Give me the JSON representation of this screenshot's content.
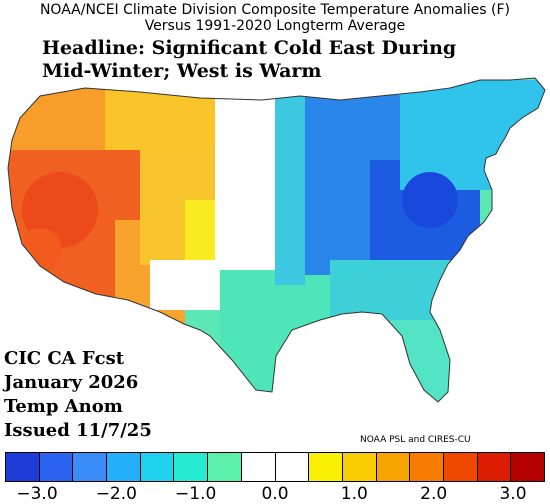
{
  "title_line1": "NOAA/NCEI Climate Division Composite Temperature Anomalies (F)",
  "title_line2": "Versus 1991-2020 Longterm Average",
  "headline": "Headline: Significant Cold East During Mid-Winter; West is Warm",
  "forecast_label": [
    "CIC CA Fcst",
    "January 2026",
    "Temp Anom",
    "Issued 11/7/25"
  ],
  "credit": "NOAA PSL and CIRES-CU",
  "colorbar": {
    "colors": [
      "#1e3cd8",
      "#2a64f0",
      "#3a8cf8",
      "#24b0f8",
      "#1ed2f0",
      "#26ecd4",
      "#5af0aa",
      "#ffffff",
      "#ffffff",
      "#f8f000",
      "#f8cc00",
      "#f8a400",
      "#f87c00",
      "#f04800",
      "#dc1c00",
      "#b40000"
    ],
    "ticks": [
      "−3.0",
      "−2.0",
      "−1.0",
      "0.0",
      "1.0",
      "2.0",
      "3.0"
    ]
  },
  "regions": [
    {
      "name": "Pacific Northwest",
      "anomaly": 1.5,
      "color": "#f89c2a"
    },
    {
      "name": "Great Basin / Southwest",
      "anomaly": 2.3,
      "color": "#f06020"
    },
    {
      "name": "Coastal California",
      "anomaly": 2.1,
      "color": "#f46a1c"
    },
    {
      "name": "Northern Rockies",
      "anomaly": 1.2,
      "color": "#f8c428"
    },
    {
      "name": "Southern Rockies",
      "anomaly": 1.0,
      "color": "#f8e020"
    },
    {
      "name": "Great Plains",
      "anomaly": 0.0,
      "color": "#ffffff"
    },
    {
      "name": "Southern Plains",
      "anomaly": -1.0,
      "color": "#4ee6b8"
    },
    {
      "name": "Midwest",
      "anomaly": -1.8,
      "color": "#2a86e8"
    },
    {
      "name": "Ohio Valley / Appalachians",
      "anomaly": -2.5,
      "color": "#1c5ce0"
    },
    {
      "name": "Northeast",
      "anomaly": -1.2,
      "color": "#30c4ec"
    },
    {
      "name": "Southeast",
      "anomaly": -1.0,
      "color": "#3ed0d8"
    },
    {
      "name": "Florida",
      "anomaly": -0.9,
      "color": "#52e4c4"
    }
  ]
}
